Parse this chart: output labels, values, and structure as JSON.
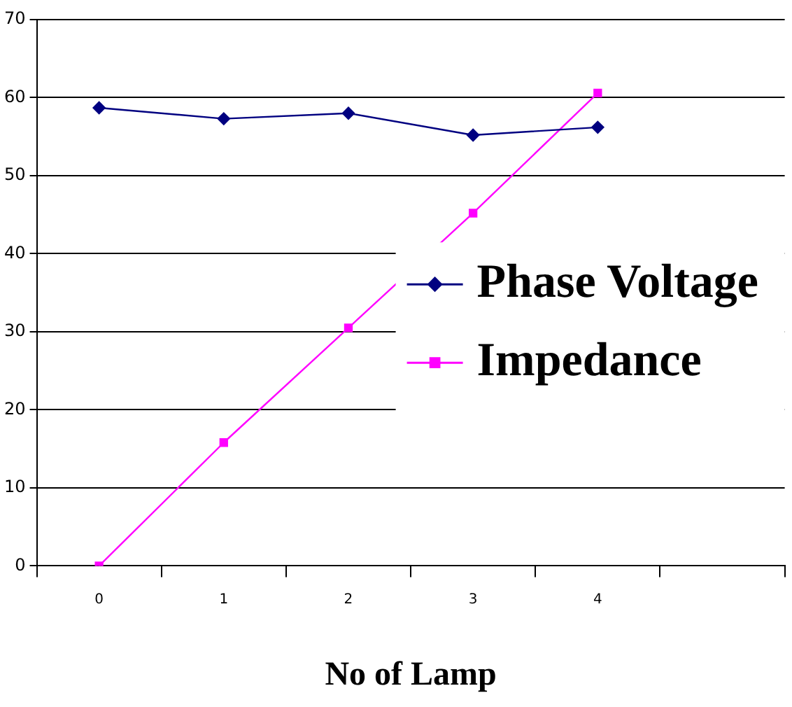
{
  "chart_data": {
    "type": "line",
    "xlabel": "No of Lamp",
    "categories": [
      "0",
      "1",
      "2",
      "3",
      "4",
      null
    ],
    "series": [
      {
        "name": "Phase Voltage",
        "color": "#000080",
        "marker": "diamond",
        "values": [
          58.7,
          57.3,
          58,
          55.2,
          56.2,
          null
        ]
      },
      {
        "name": "Impedance",
        "color": "#ff00ff",
        "marker": "square",
        "values": [
          0,
          15.8,
          30.5,
          45.2,
          60.6,
          null
        ]
      }
    ],
    "ylim": [
      0,
      70
    ],
    "yticks": [
      0,
      10,
      20,
      30,
      40,
      50,
      60,
      70
    ],
    "grid": "y",
    "legend": "right",
    "line_style": "solid"
  }
}
